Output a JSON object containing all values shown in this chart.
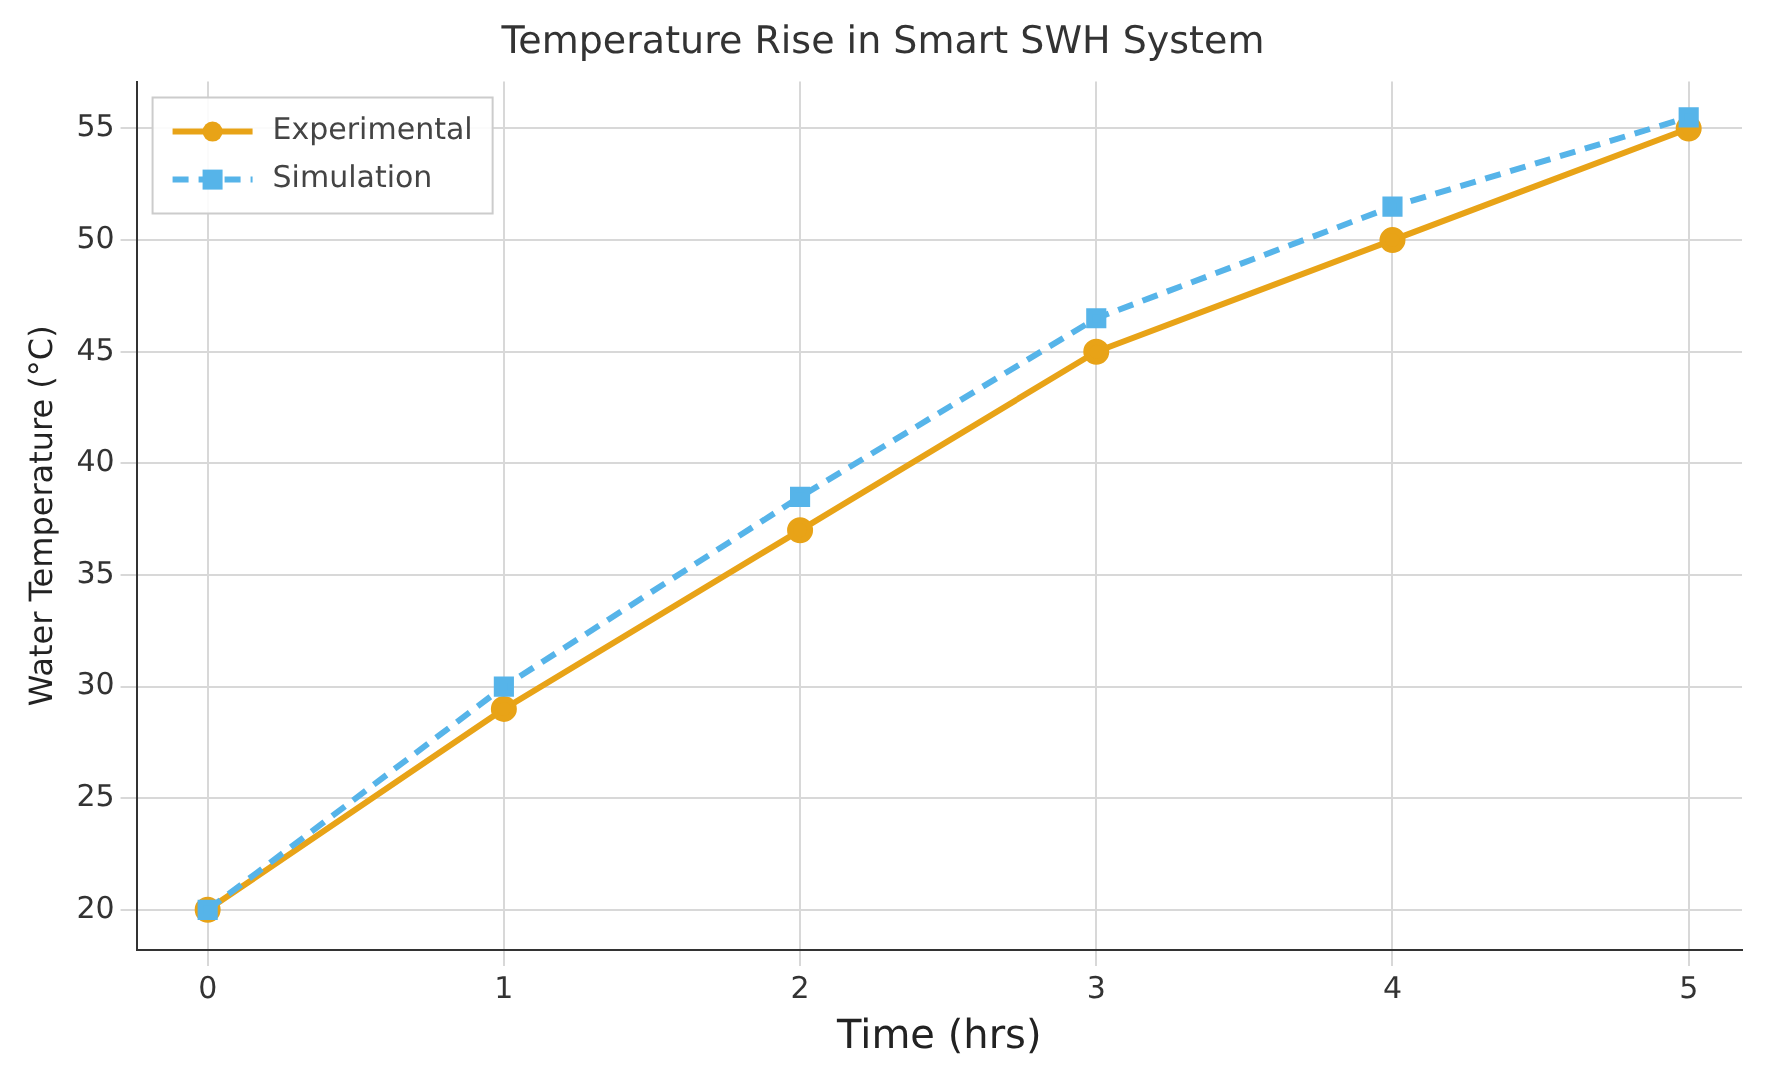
{
  "chart_data": {
    "type": "line",
    "title": "Temperature Rise in Smart SWH System",
    "xlabel": "Time (hrs)",
    "ylabel": "Water Temperature (°C)",
    "x": [
      0,
      1,
      2,
      3,
      4,
      5
    ],
    "series": [
      {
        "name": "Experimental",
        "color": "#e8a317",
        "values": [
          20,
          29,
          37,
          45,
          50,
          55
        ],
        "marker": "circle",
        "line_style": "solid"
      },
      {
        "name": "Simulation",
        "color": "#56b4e9",
        "values": [
          20,
          30,
          38.5,
          46.5,
          51.5,
          55.5
        ],
        "marker": "square",
        "line_style": "dashed"
      }
    ],
    "xlim": [
      -0.24,
      5.18
    ],
    "xticks": [
      0,
      1,
      2,
      3,
      4,
      5
    ],
    "ylim": [
      18.2,
      57.1
    ],
    "yticks": [
      20,
      25,
      30,
      35,
      40,
      45,
      50,
      55
    ],
    "grid": true,
    "legend": "top left"
  }
}
